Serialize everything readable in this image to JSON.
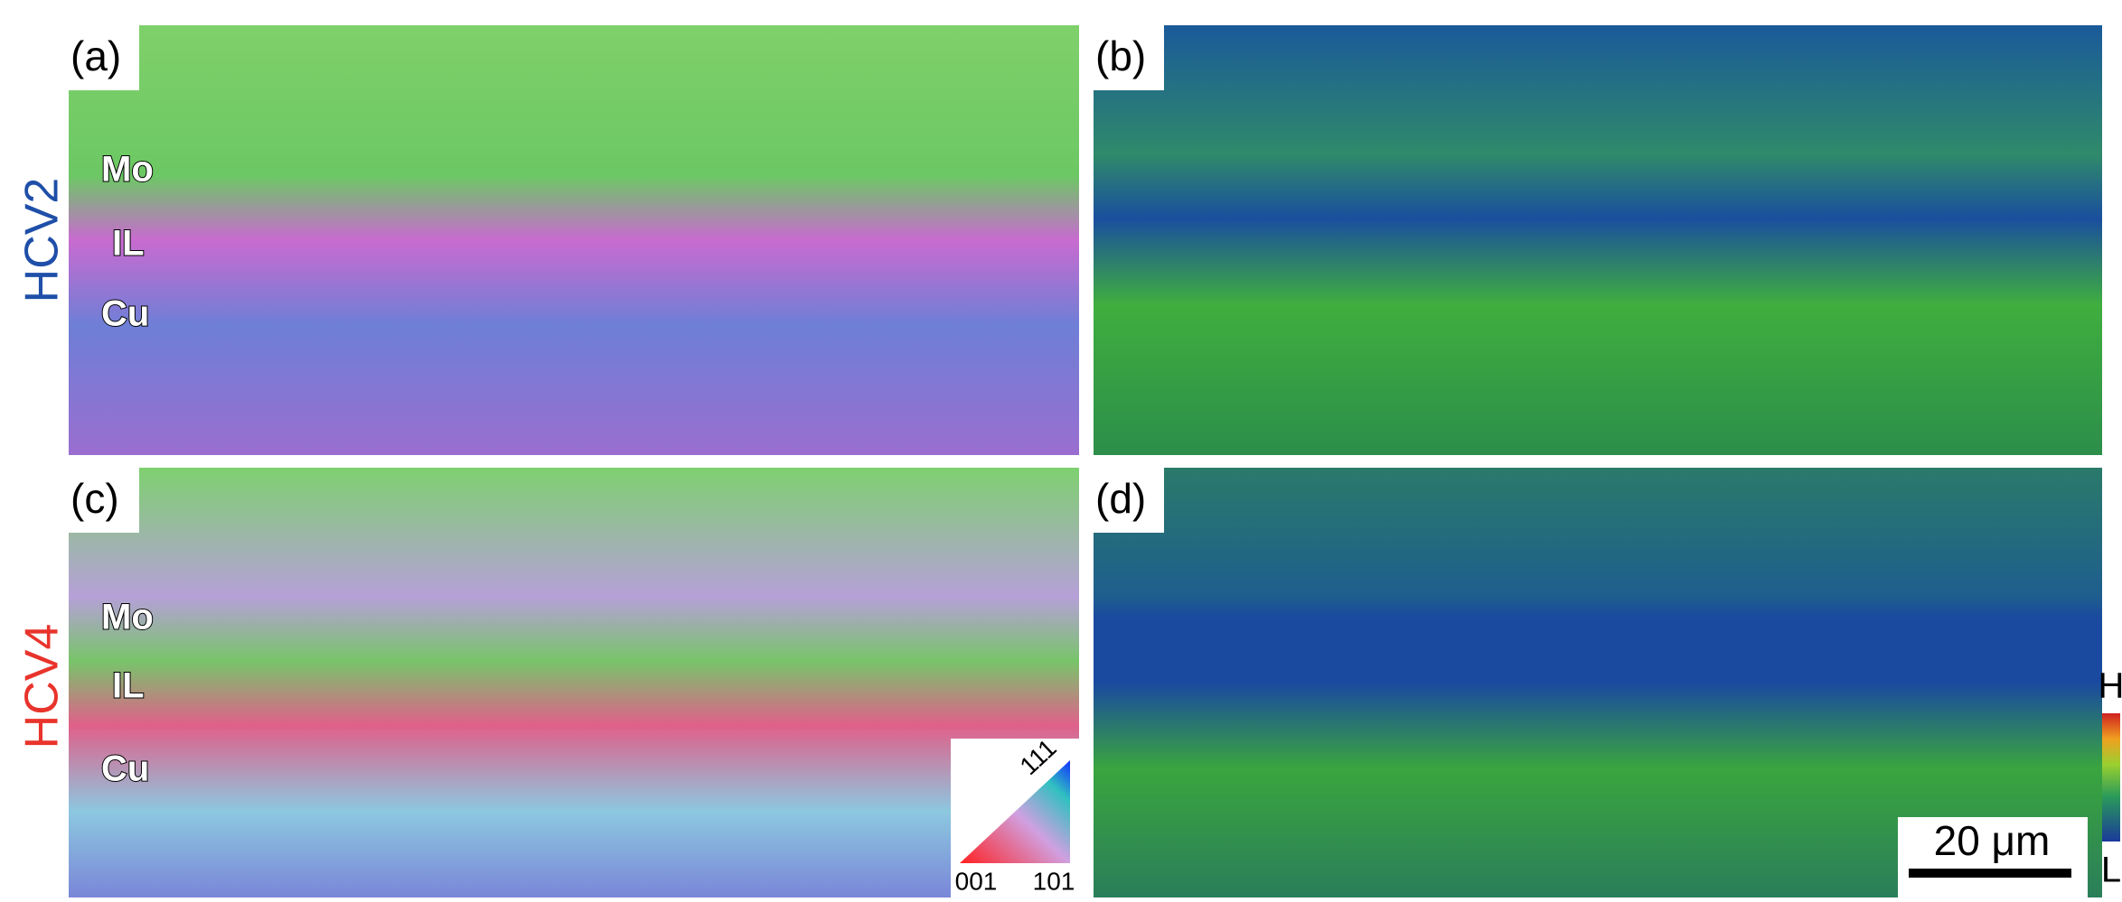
{
  "figure": {
    "rows": [
      {
        "sample": "HCV2",
        "panels": [
          "(a)",
          "(b)"
        ],
        "layers": [
          "Mo",
          "IL",
          "Cu"
        ]
      },
      {
        "sample": "HCV4",
        "panels": [
          "(c)",
          "(d)"
        ],
        "layers": [
          "Mo",
          "IL",
          "Cu"
        ]
      }
    ],
    "ipf_legend": {
      "top": "111",
      "left": "001",
      "right": "101"
    },
    "colorbar": {
      "high": "H",
      "low": "L"
    },
    "scale_bar": "20 μm"
  }
}
